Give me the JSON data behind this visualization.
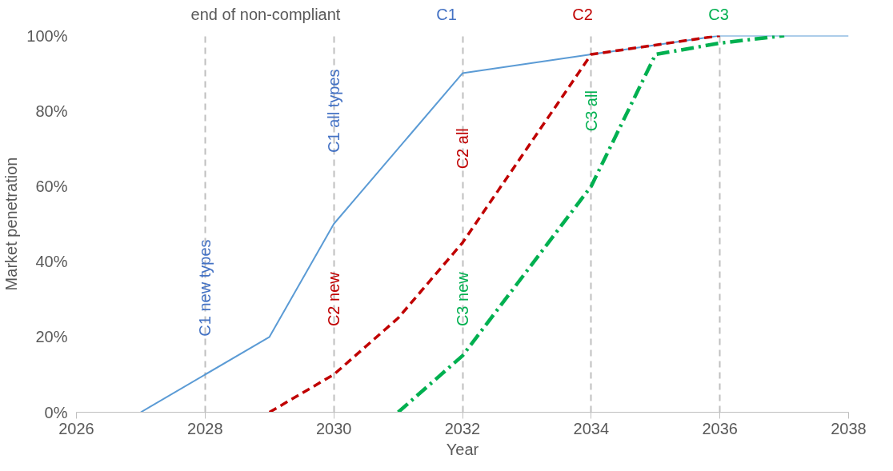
{
  "chart_data": {
    "type": "line",
    "xlabel": "Year",
    "ylabel": "Market penetration",
    "xlim": [
      2026,
      2038
    ],
    "xticks": [
      2026,
      2028,
      2030,
      2032,
      2034,
      2036,
      2038
    ],
    "ylim": [
      0,
      100
    ],
    "yticks": [
      {
        "value": 0,
        "label": "0%"
      },
      {
        "value": 20,
        "label": "20%"
      },
      {
        "value": 40,
        "label": "40%"
      },
      {
        "value": 60,
        "label": "60%"
      },
      {
        "value": 80,
        "label": "80%"
      },
      {
        "value": 100,
        "label": "100%"
      }
    ],
    "grid": "x",
    "series": [
      {
        "color": "#5b9bd5",
        "line_style": "solid",
        "x": [
          2027,
          2029,
          2030,
          2032,
          2034,
          2036,
          2038
        ],
        "values": [
          0,
          20,
          50,
          90,
          95,
          100,
          100
        ]
      },
      {
        "color": "#c00000",
        "line_style": "dashed",
        "x": [
          2029,
          2030,
          2031,
          2032,
          2034,
          2036
        ],
        "values": [
          0,
          10,
          25,
          45,
          95,
          100
        ]
      },
      {
        "color": "#00b050",
        "line_style": "dashdot",
        "x": [
          2031,
          2032,
          2034,
          2035,
          2036,
          2037
        ],
        "values": [
          0,
          15,
          60,
          95,
          98,
          100
        ]
      }
    ],
    "annotations": [
      "end of non-compliant",
      "C1",
      "C2",
      "C3",
      "C1 new types",
      "C1 all types",
      "C2 new",
      "C2 all",
      "C3 new",
      "C3 all"
    ]
  }
}
